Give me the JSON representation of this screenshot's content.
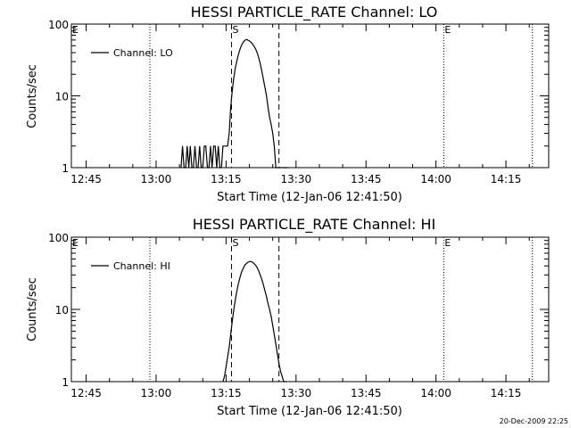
{
  "footer": {
    "timestamp": "20-Dec-2009 22:25"
  },
  "chart_data": [
    {
      "type": "line",
      "title": "HESSI PARTICLE_RATE Channel: LO",
      "xlabel": "Start Time (12-Jan-06 12:41:50)",
      "ylabel": "Counts/sec",
      "yscale": "log",
      "ylim": [
        1,
        100
      ],
      "xlim": [
        "12:41:50",
        "14:24:10"
      ],
      "x_ticks": [
        "12:45",
        "13:00",
        "13:15",
        "13:30",
        "13:45",
        "14:00",
        "14:15"
      ],
      "y_ticks": [
        "1",
        "10",
        "100"
      ],
      "legend": {
        "position": "top-left",
        "entries": [
          "Channel: LO"
        ]
      },
      "markers": [
        {
          "label": "E",
          "time": "12:41:50",
          "style": "dotted"
        },
        {
          "label": "",
          "time": "12:58:40",
          "style": "dotted"
        },
        {
          "label": "S",
          "time": "13:16:10",
          "style": "dashed"
        },
        {
          "label": "",
          "time": "13:26:20",
          "style": "dashed"
        },
        {
          "label": "E",
          "time": "14:01:40",
          "style": "dotted"
        },
        {
          "label": "",
          "time": "14:20:40",
          "style": "dotted"
        }
      ],
      "series": [
        {
          "name": "Channel: LO",
          "x": [
            "13:05:20",
            "13:05:40",
            "13:06:00",
            "13:06:20",
            "13:06:40",
            "13:07:00",
            "13:07:20",
            "13:07:40",
            "13:08:00",
            "13:08:20",
            "13:08:40",
            "13:09:00",
            "13:09:20",
            "13:09:40",
            "13:10:00",
            "13:10:20",
            "13:10:40",
            "13:11:00",
            "13:11:20",
            "13:11:40",
            "13:12:00",
            "13:12:20",
            "13:12:40",
            "13:13:00",
            "13:13:20",
            "13:13:40",
            "13:14:00",
            "13:14:20",
            "13:14:40",
            "13:15:00",
            "13:15:20",
            "13:15:40",
            "13:16:00",
            "13:16:20",
            "13:16:40",
            "13:17:00",
            "13:17:20",
            "13:17:40",
            "13:18:00",
            "13:18:20",
            "13:18:40",
            "13:19:00",
            "13:19:20",
            "13:19:40",
            "13:20:00",
            "13:20:20",
            "13:20:40",
            "13:21:00",
            "13:21:20",
            "13:21:40",
            "13:22:00",
            "13:22:20",
            "13:22:40",
            "13:23:00",
            "13:23:20",
            "13:23:40",
            "13:24:00",
            "13:24:20",
            "13:24:40",
            "13:25:00",
            "13:25:20",
            "13:25:40",
            "13:26:00",
            "13:26:20",
            "13:26:40",
            "13:27:00",
            "13:27:20",
            "13:27:40",
            "13:28:00",
            "13:28:20"
          ],
          "y": [
            1,
            2,
            1,
            1,
            2,
            1,
            2,
            1,
            1,
            2,
            1,
            1,
            2,
            1,
            1,
            2,
            2,
            1,
            1,
            2,
            1,
            2,
            2,
            1,
            2,
            1,
            1,
            2,
            2,
            2,
            2,
            3,
            7,
            12,
            18,
            25,
            31,
            38,
            45,
            51,
            56,
            59,
            61,
            60,
            58,
            56,
            53,
            49,
            45,
            40,
            34,
            28,
            22,
            17,
            13,
            10,
            7,
            5,
            4,
            3,
            2,
            1,
            1,
            1,
            1,
            1,
            1,
            1,
            1,
            1
          ]
        }
      ]
    },
    {
      "type": "line",
      "title": "HESSI PARTICLE_RATE Channel: HI",
      "xlabel": "Start Time (12-Jan-06 12:41:50)",
      "ylabel": "Counts/sec",
      "yscale": "log",
      "ylim": [
        1,
        100
      ],
      "xlim": [
        "12:41:50",
        "14:24:10"
      ],
      "x_ticks": [
        "12:45",
        "13:00",
        "13:15",
        "13:30",
        "13:45",
        "14:00",
        "14:15"
      ],
      "y_ticks": [
        "1",
        "10",
        "100"
      ],
      "legend": {
        "position": "top-left",
        "entries": [
          "Channel: HI"
        ]
      },
      "markers": [
        {
          "label": "E",
          "time": "12:41:50",
          "style": "dotted"
        },
        {
          "label": "",
          "time": "12:58:40",
          "style": "dotted"
        },
        {
          "label": "S",
          "time": "13:16:10",
          "style": "dashed"
        },
        {
          "label": "",
          "time": "13:26:20",
          "style": "dashed"
        },
        {
          "label": "E",
          "time": "14:01:40",
          "style": "dotted"
        },
        {
          "label": "",
          "time": "14:20:40",
          "style": "dotted"
        }
      ],
      "series": [
        {
          "name": "Channel: HI",
          "x": [
            "13:14:20",
            "13:14:40",
            "13:15:00",
            "13:15:20",
            "13:15:40",
            "13:16:00",
            "13:16:20",
            "13:16:40",
            "13:17:00",
            "13:17:20",
            "13:17:40",
            "13:18:00",
            "13:18:20",
            "13:18:40",
            "13:19:00",
            "13:19:20",
            "13:19:40",
            "13:20:00",
            "13:20:20",
            "13:20:40",
            "13:21:00",
            "13:21:20",
            "13:21:40",
            "13:22:00",
            "13:22:20",
            "13:22:40",
            "13:23:00",
            "13:23:20",
            "13:23:40",
            "13:24:00",
            "13:24:20",
            "13:24:40",
            "13:25:00",
            "13:25:20",
            "13:25:40",
            "13:26:00",
            "13:26:20",
            "13:26:40",
            "13:27:00",
            "13:27:20",
            "13:27:40",
            "13:28:00"
          ],
          "y": [
            1,
            1.2,
            1.6,
            2.2,
            3,
            4.5,
            7,
            10,
            14,
            18,
            23,
            28,
            33,
            37,
            41,
            43,
            45,
            46,
            46,
            45,
            43,
            41,
            38,
            34,
            30,
            26,
            22,
            18,
            15,
            12,
            10,
            8,
            6,
            4.5,
            3.3,
            2.4,
            1.8,
            1.4,
            1.2,
            1,
            1,
            1
          ]
        }
      ]
    }
  ]
}
